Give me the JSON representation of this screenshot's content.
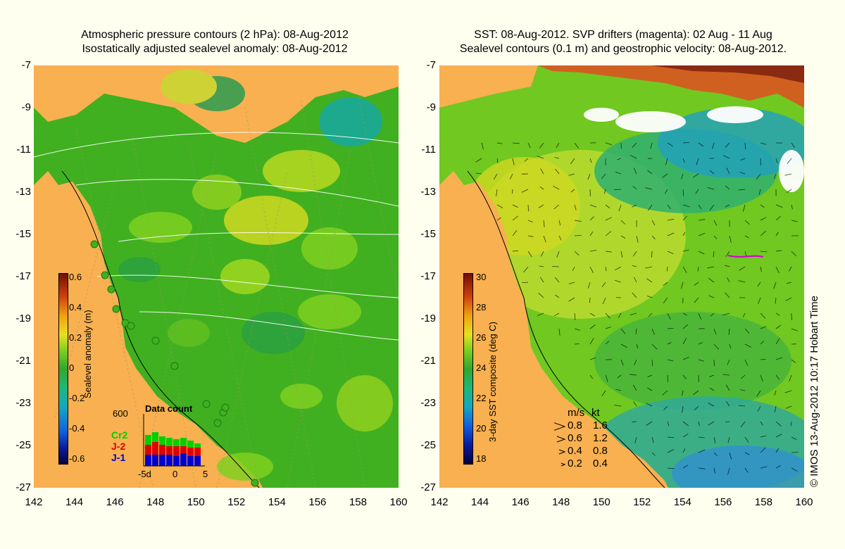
{
  "left_panel": {
    "title_line1": "Atmospheric pressure contours (2 hPa): 08-Aug-2012",
    "title_line2": "Isostatically adjusted sealevel anomaly: 08-Aug-2012",
    "colorbar_title": "Sealevel anomaly (m)",
    "colorbar_ticks": [
      "0.6",
      "0.4",
      "0.2",
      "0",
      "-0.2",
      "-0.4",
      "-0.6"
    ],
    "data_count": {
      "title": "Data count",
      "ymax_label": "600",
      "x_ticks": [
        "-5d",
        "0",
        "5"
      ],
      "satellites": [
        {
          "name": "Cr2",
          "color": "#00d000"
        },
        {
          "name": "J-2",
          "color": "#e00000"
        },
        {
          "name": "J-1",
          "color": "#0000d0"
        }
      ]
    }
  },
  "right_panel": {
    "title_line1": "SST: 08-Aug-2012. SVP drifters (magenta): 02 Aug - 11 Aug",
    "title_line2": "Sealevel contours (0.1 m) and geostrophic velocity: 08-Aug-2012.",
    "colorbar_title": "3-day SST composite (deg C)",
    "colorbar_ticks": [
      "30",
      "28",
      "26",
      "24",
      "22",
      "20",
      "18"
    ],
    "velocity_legend": {
      "header_ms": "m/s",
      "header_kt": "kt",
      "rows": [
        {
          "ms": "0.8",
          "kt": "1.6"
        },
        {
          "ms": "0.6",
          "kt": "1.2"
        },
        {
          "ms": "0.4",
          "kt": "0.8"
        },
        {
          "ms": "0.2",
          "kt": "0.4"
        }
      ]
    }
  },
  "axes": {
    "y_ticks": [
      "-7",
      "-9",
      "-11",
      "-13",
      "-15",
      "-17",
      "-19",
      "-21",
      "-23",
      "-25",
      "-27"
    ],
    "x_ticks": [
      "142",
      "144",
      "146",
      "148",
      "150",
      "152",
      "154",
      "156",
      "158",
      "160"
    ]
  },
  "credit": "© IMOS 13-Aug-2012 10:17 Hobart Time",
  "colors": {
    "land": "#f8b050",
    "ocean_green": "#40b020",
    "ocean_light": "#80d020",
    "ocean_yellow": "#d0d820",
    "sst_blue": "#30a0d0",
    "background": "#fffff0"
  }
}
